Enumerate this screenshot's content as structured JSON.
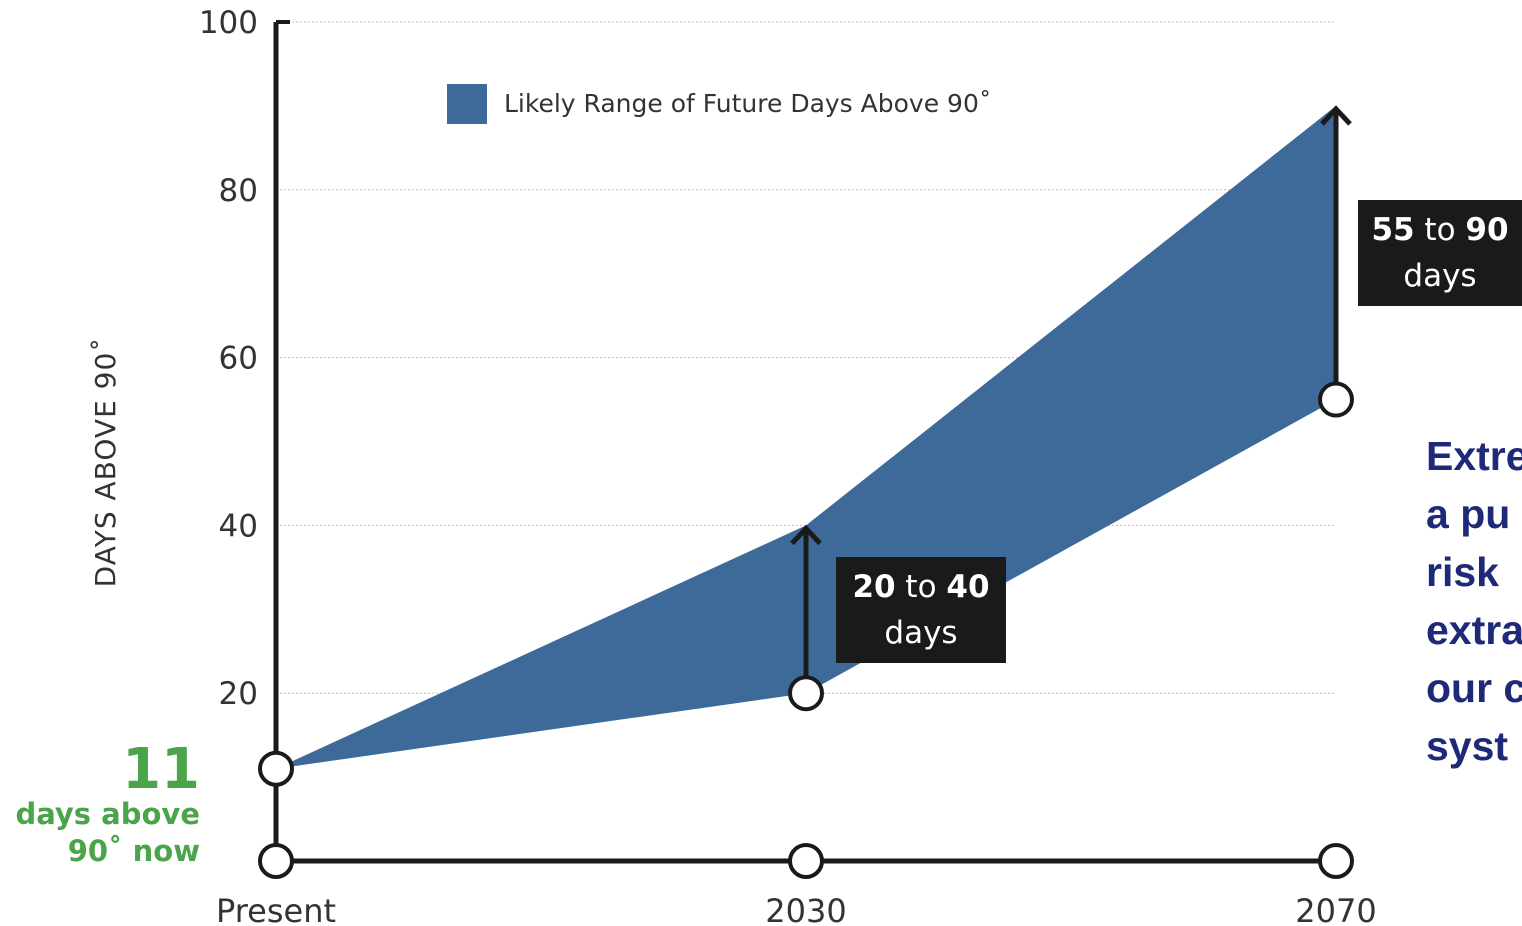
{
  "chart_data": {
    "type": "area",
    "title": "",
    "ylabel": "DAYS ABOVE 90˚",
    "ylim": [
      0,
      100
    ],
    "yticks": [
      20,
      40,
      60,
      80,
      100
    ],
    "categories": [
      "Present",
      "2030",
      "2070"
    ],
    "series": [
      {
        "name": "Likely Range of Future Days Above 90˚",
        "lower": [
          11,
          20,
          55
        ],
        "upper": [
          11,
          40,
          90
        ]
      }
    ],
    "grid": true,
    "legend": "top-center",
    "colors": {
      "band": "#3e6a99",
      "axis": "#1a1a1a",
      "green": "#4aa54a",
      "box": "#1a1a1a",
      "navy": "#1e2a78"
    },
    "annotations": {
      "present_value": "11",
      "present_line1": "days above",
      "present_line2": "90˚ now",
      "box_2030": {
        "low": "20",
        "to": " to ",
        "high": "40",
        "unit": "days"
      },
      "box_2070": {
        "low": "55",
        "to": " to ",
        "high": "90",
        "unit": "days"
      }
    }
  },
  "side_text": [
    "Extre",
    "a pu",
    "risk ",
    "extra",
    "our c",
    "syst"
  ]
}
